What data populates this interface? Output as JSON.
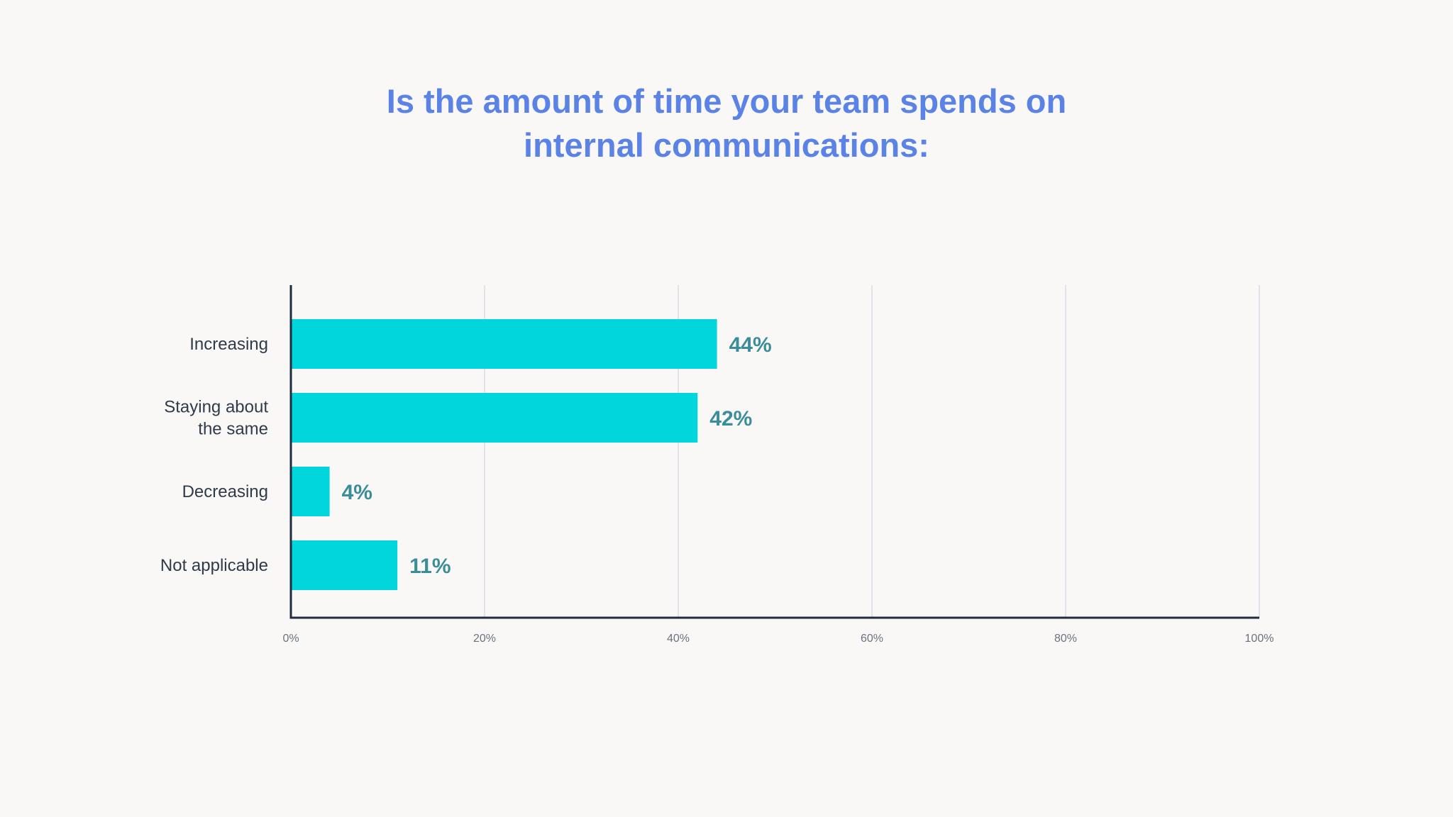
{
  "title_lines": [
    "Is the amount of time your team spends on",
    "internal communications:"
  ],
  "colors": {
    "title": "#5b83e6",
    "bar": "#00d6dc",
    "value_label": "#3a8d99",
    "axis": "#1f2d40",
    "grid": "#d8dce2",
    "background": "#f9f8f6"
  },
  "chart_data": {
    "type": "bar",
    "orientation": "horizontal",
    "title": "Is the amount of time your team spends on internal communications:",
    "categories": [
      [
        "Increasing"
      ],
      [
        "Staying about",
        "the same"
      ],
      [
        "Decreasing"
      ],
      [
        "Not applicable"
      ]
    ],
    "values": [
      44,
      42,
      4,
      11
    ],
    "value_labels": [
      "44%",
      "42%",
      "4%",
      "11%"
    ],
    "xlim": [
      0,
      100
    ],
    "xticks": [
      0,
      20,
      40,
      60,
      80,
      100
    ],
    "xtick_labels": [
      "0%",
      "20%",
      "40%",
      "60%",
      "80%",
      "100%"
    ],
    "grid": true,
    "xlabel": "",
    "ylabel": ""
  }
}
